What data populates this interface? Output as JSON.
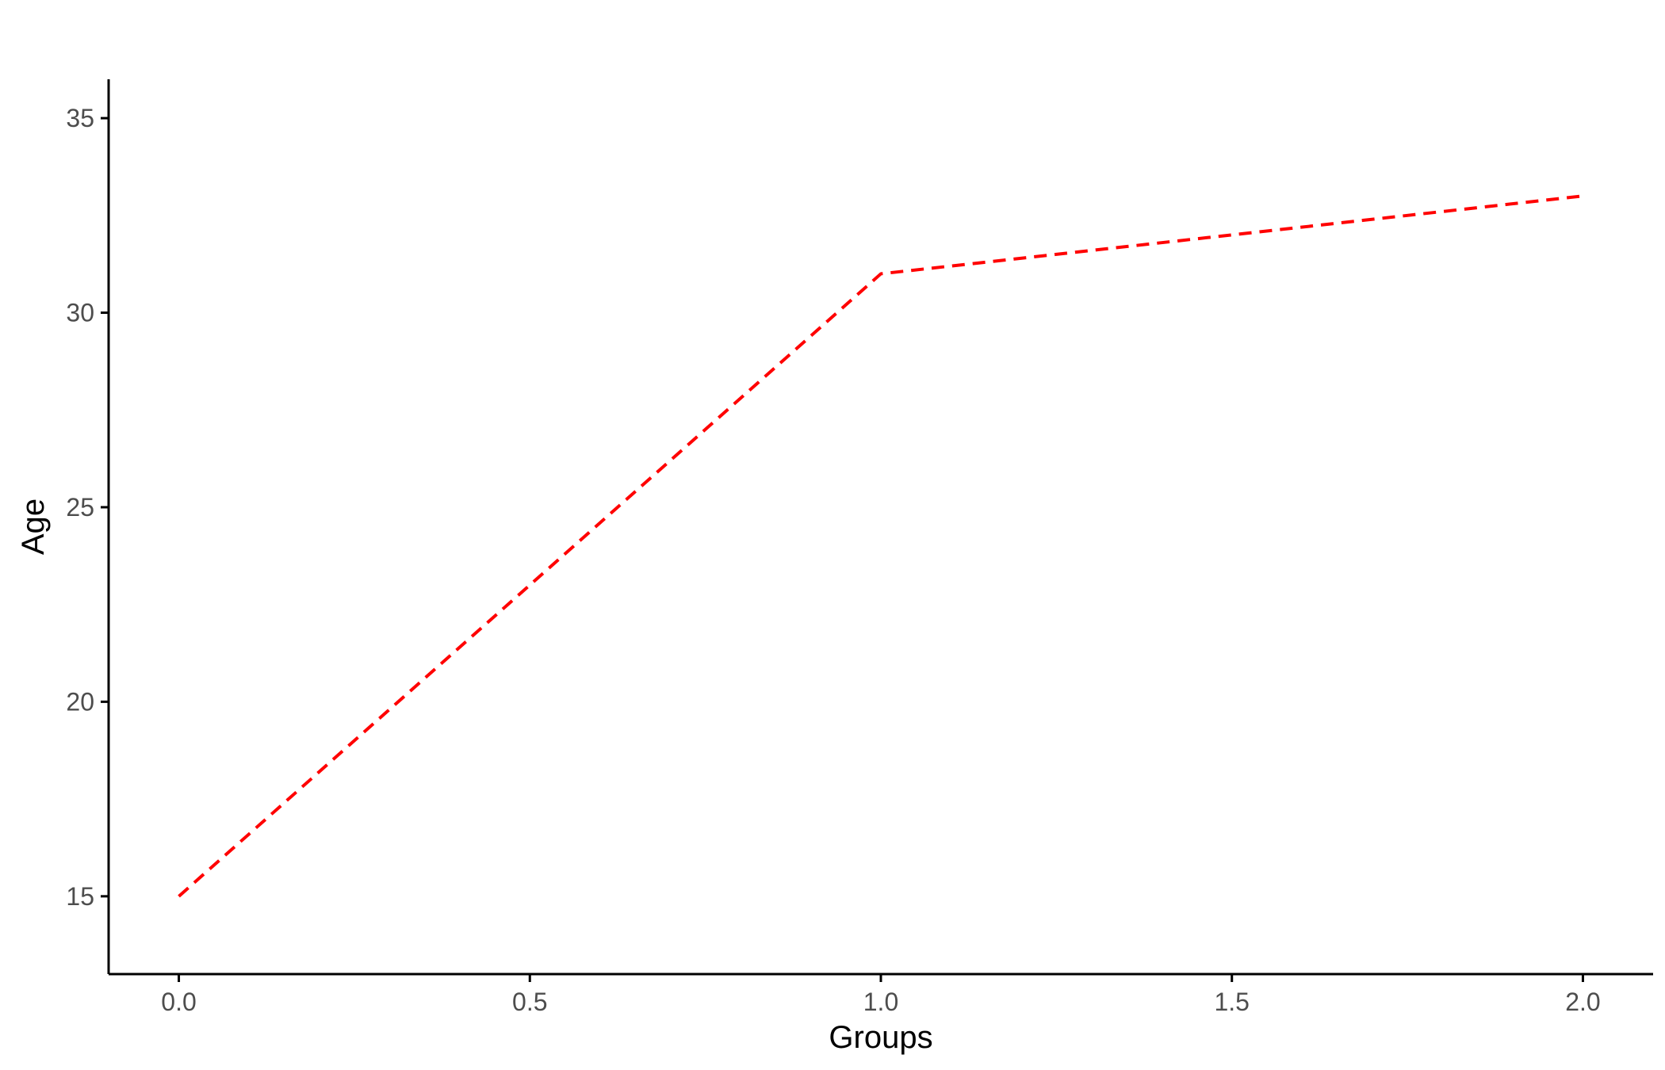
{
  "chart_data": {
    "type": "line",
    "title": "",
    "xlabel": "Groups",
    "ylabel": "Age",
    "x": [
      0,
      1,
      2
    ],
    "series": [
      {
        "values": [
          15,
          31,
          33
        ],
        "color": "#ff0000",
        "line_style": "dashed"
      }
    ],
    "xlim": [
      -0.1,
      2.1
    ],
    "ylim": [
      13,
      36
    ],
    "x_ticks": [
      0,
      0.5,
      1,
      1.5,
      2
    ],
    "x_tick_labels": [
      "0.0",
      "0.5",
      "1.0",
      "1.5",
      "2.0"
    ],
    "y_ticks": [
      15,
      20,
      25,
      30,
      35
    ],
    "y_tick_labels": [
      "15",
      "20",
      "25",
      "30",
      "35"
    ],
    "grid": false,
    "legend": "none"
  }
}
